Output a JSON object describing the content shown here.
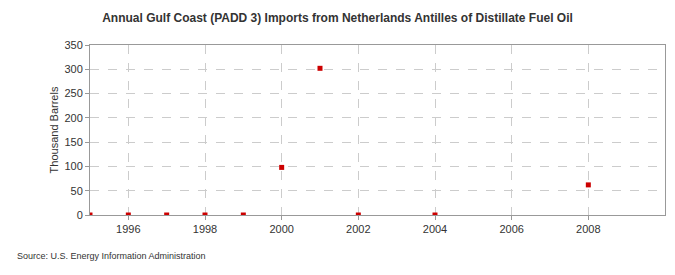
{
  "chart_data": {
    "type": "scatter",
    "title": "Annual Gulf Coast (PADD 3) Imports from Netherlands Antilles of Distillate Fuel Oil",
    "y_label": "Thousand Barrels",
    "annotations": [
      "Source: U.S. Energy Information Administration"
    ],
    "x": [
      1995,
      1996,
      1997,
      1998,
      1999,
      2000,
      2001,
      2002,
      2004,
      2008
    ],
    "values": [
      0,
      0,
      0,
      0,
      0,
      98,
      302,
      0,
      0,
      62
    ],
    "color": "#cc0000",
    "marker": "square",
    "xlim": [
      1995,
      2010
    ],
    "xticks": [
      1996,
      1998,
      2000,
      2002,
      2004,
      2006,
      2008
    ],
    "ylim": [
      0,
      350
    ],
    "yticks": [
      0,
      50,
      100,
      150,
      200,
      250,
      300,
      350
    ],
    "grid": true
  }
}
